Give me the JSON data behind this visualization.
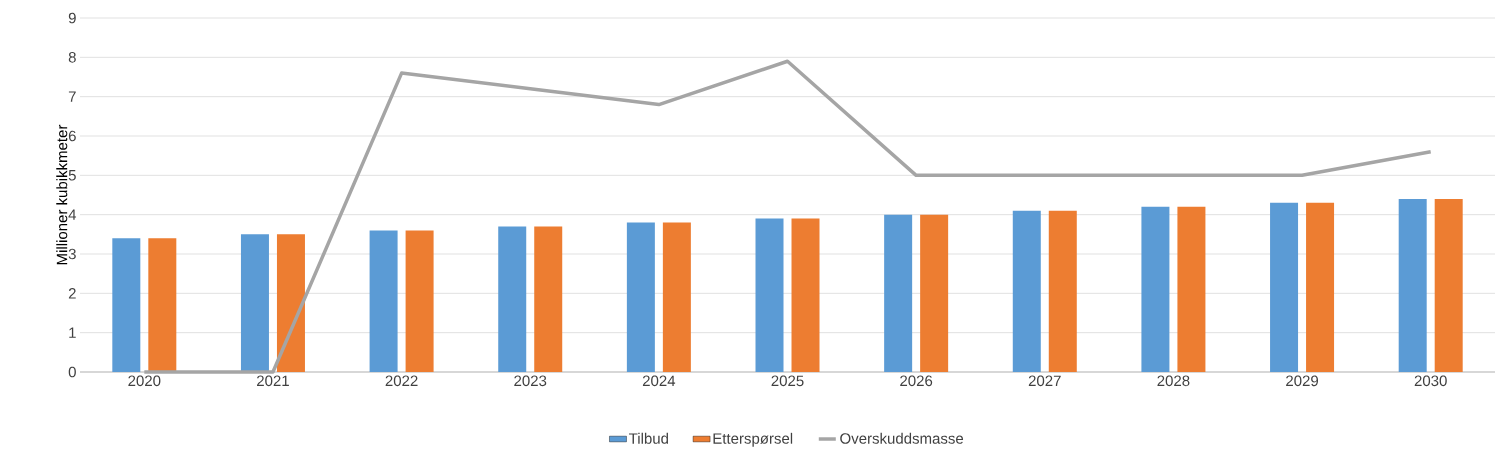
{
  "chart_data": {
    "type": "bar",
    "ylabel": "Millioner kubikkmeter",
    "categories": [
      "2020",
      "2021",
      "2022",
      "2023",
      "2024",
      "2025",
      "2026",
      "2027",
      "2028",
      "2029",
      "2030"
    ],
    "series": [
      {
        "name": "Tilbud",
        "color": "#5b9bd5",
        "values": [
          3.4,
          3.5,
          3.6,
          3.7,
          3.8,
          3.9,
          4.0,
          4.1,
          4.2,
          4.3,
          4.4
        ]
      },
      {
        "name": "Etterspørsel",
        "color": "#ed7d31",
        "values": [
          3.4,
          3.5,
          3.6,
          3.7,
          3.8,
          3.9,
          4.0,
          4.1,
          4.2,
          4.3,
          4.4
        ]
      },
      {
        "name": "Overskuddsmasse",
        "type": "line",
        "color": "#a5a5a5",
        "values": [
          0,
          0,
          7.6,
          7.2,
          6.8,
          7.9,
          5.0,
          5.0,
          5.0,
          5.0,
          5.6
        ]
      }
    ],
    "ylim": [
      0,
      9
    ],
    "yticks": [
      0,
      1,
      2,
      3,
      4,
      5,
      6,
      7,
      8,
      9
    ],
    "grid": "y",
    "legend": "bottom",
    "marker": "none"
  }
}
